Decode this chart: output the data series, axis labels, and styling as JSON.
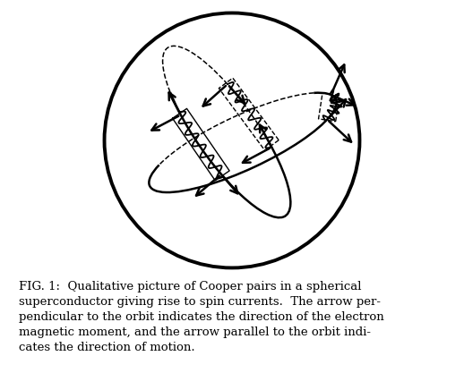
{
  "fig_width": 5.18,
  "fig_height": 4.36,
  "dpi": 100,
  "caption": "FIG. 1:  Qualitative picture of Cooper pairs in a spherical\nsuperconductor giving rise to spin currents.  The arrow per-\npendicular to the orbit indicates the direction of the electron\nmagnetic moment, and the arrow parallel to the orbit indi-\ncates the direction of motion.",
  "caption_fontsize": 9.5,
  "bg_color": "white",
  "line_color": "black"
}
